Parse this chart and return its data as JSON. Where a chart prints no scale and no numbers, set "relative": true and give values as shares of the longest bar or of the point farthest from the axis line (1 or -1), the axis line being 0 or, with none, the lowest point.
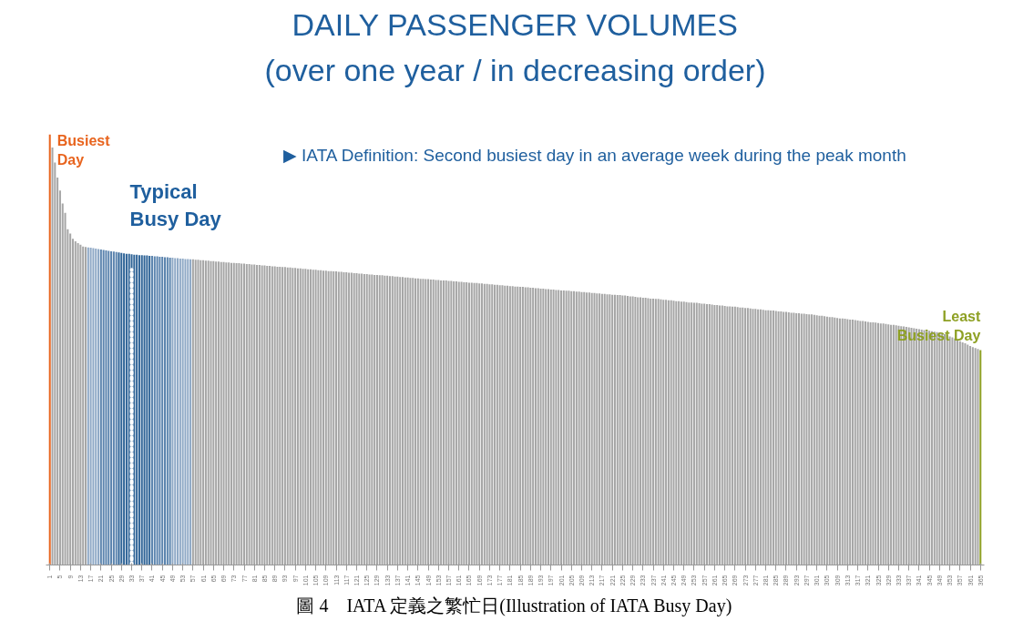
{
  "chart_data": {
    "type": "bar",
    "title": "DAILY PASSENGER VOLUMES",
    "subtitle": "(over one year / in decreasing order)",
    "relative": true,
    "categories": [
      "1",
      null,
      null,
      null,
      "5",
      null,
      null,
      null,
      "9",
      null,
      null,
      null,
      "13",
      null,
      null,
      null,
      "17",
      null,
      null,
      null,
      "21",
      null,
      null,
      null,
      "25",
      null,
      null,
      null,
      "29",
      null,
      null,
      null,
      "33",
      null,
      null,
      null,
      "37",
      null,
      null,
      null,
      "41",
      null,
      null,
      null,
      "45",
      null,
      null,
      null,
      "49",
      null,
      null,
      null,
      "53",
      null,
      null,
      null,
      "57",
      null,
      null,
      null,
      "61",
      null,
      null,
      null,
      "65",
      null,
      null,
      null,
      "69",
      null,
      null,
      null,
      "73",
      null,
      null,
      null,
      "77",
      null,
      null,
      null,
      "81",
      null,
      null,
      null,
      "85",
      null,
      null,
      null,
      "89",
      null,
      null,
      null,
      "93",
      null,
      null,
      null,
      "97",
      null,
      null,
      null,
      "101",
      null,
      null,
      null,
      "105",
      null,
      null,
      null,
      "109",
      null,
      null,
      null,
      "113",
      null,
      null,
      null,
      "117",
      null,
      null,
      null,
      "121",
      null,
      null,
      null,
      "125",
      null,
      null,
      null,
      "129",
      null,
      null,
      null,
      "133",
      null,
      null,
      null,
      "137",
      null,
      null,
      null,
      "141",
      null,
      null,
      null,
      "145",
      null,
      null,
      null,
      "149",
      null,
      null,
      null,
      "153",
      null,
      null,
      null,
      "157",
      null,
      null,
      null,
      "161",
      null,
      null,
      null,
      "165",
      null,
      null,
      null,
      "169",
      null,
      null,
      null,
      "173",
      null,
      null,
      null,
      "177",
      null,
      null,
      null,
      "181",
      null,
      null,
      null,
      "185",
      null,
      null,
      null,
      "189",
      null,
      null,
      null,
      "193",
      null,
      null,
      null,
      "197",
      null,
      null,
      null,
      "201",
      null,
      null,
      null,
      "205",
      null,
      null,
      null,
      "209",
      null,
      null,
      null,
      "213",
      null,
      null,
      null,
      "217",
      null,
      null,
      null,
      "221",
      null,
      null,
      null,
      "225",
      null,
      null,
      null,
      "229",
      null,
      null,
      null,
      "233",
      null,
      null,
      null,
      "237",
      null,
      null,
      null,
      "241",
      null,
      null,
      null,
      "245",
      null,
      null,
      null,
      "249",
      null,
      null,
      null,
      "253",
      null,
      null,
      null,
      "257",
      null,
      null,
      null,
      "261",
      null,
      null,
      null,
      "265",
      null,
      null,
      null,
      "269",
      null,
      null,
      null,
      "273",
      null,
      null,
      null,
      "277",
      null,
      null,
      null,
      "281",
      null,
      null,
      null,
      "285",
      null,
      null,
      null,
      "289",
      null,
      null,
      null,
      "293",
      null,
      null,
      null,
      "297",
      null,
      null,
      null,
      "301",
      null,
      null,
      null,
      "305",
      null,
      null,
      null,
      "309",
      null,
      null,
      null,
      "313",
      null,
      null,
      null,
      "317",
      null,
      null,
      null,
      "321",
      null,
      null,
      null,
      "325",
      null,
      null,
      null,
      "329",
      null,
      null,
      null,
      "333",
      null,
      null,
      null,
      "337",
      null,
      null,
      null,
      "341",
      null,
      null,
      null,
      "345",
      null,
      null,
      null,
      "349",
      null,
      null,
      null,
      "353",
      null,
      null,
      null,
      "357",
      null,
      null,
      null,
      "361",
      null,
      null,
      null,
      "365"
    ],
    "values": [
      1,
      0.97,
      0.935,
      0.9,
      0.87,
      0.84,
      0.818,
      0.78,
      0.77,
      0.758,
      0.752,
      0.748,
      0.744,
      0.74,
      0.739,
      0.738,
      0.737,
      0.736,
      0.735,
      0.734,
      0.733,
      0.732,
      0.731,
      0.73,
      0.729,
      0.728,
      0.727,
      0.726,
      0.725,
      0.724,
      0.723,
      0.723,
      0.722,
      0.721,
      0.721,
      0.72,
      0.72,
      0.719,
      0.719,
      0.718,
      0.718,
      0.717,
      0.717,
      0.716,
      0.716,
      0.715,
      0.715,
      0.714,
      0.714,
      0.713,
      0.713,
      0.712,
      0.712,
      0.711,
      0.711,
      0.71,
      0.71,
      0.709,
      0.709,
      0.708,
      0.708,
      0.707,
      0.707,
      0.706,
      0.706,
      0.705,
      0.705,
      0.704,
      0.704,
      0.703,
      0.703,
      0.702,
      0.702,
      0.701,
      0.701,
      0.7,
      0.7,
      0.699,
      0.699,
      0.698,
      0.698,
      0.697,
      0.697,
      0.696,
      0.696,
      0.695,
      0.695,
      0.694,
      0.694,
      0.693,
      0.693,
      0.692,
      0.692,
      0.691,
      0.691,
      0.69,
      0.69,
      0.689,
      0.689,
      0.688,
      0.688,
      0.687,
      0.687,
      0.686,
      0.686,
      0.685,
      0.685,
      0.684,
      0.684,
      0.683,
      0.683,
      0.682,
      0.682,
      0.681,
      0.681,
      0.68,
      0.68,
      0.679,
      0.679,
      0.678,
      0.678,
      0.677,
      0.677,
      0.676,
      0.676,
      0.675,
      0.675,
      0.674,
      0.674,
      0.673,
      0.673,
      0.672,
      0.672,
      0.671,
      0.671,
      0.67,
      0.67,
      0.669,
      0.669,
      0.668,
      0.668,
      0.667,
      0.667,
      0.666,
      0.666,
      0.665,
      0.665,
      0.664,
      0.664,
      0.663,
      0.663,
      0.662,
      0.662,
      0.661,
      0.661,
      0.661,
      0.66,
      0.66,
      0.659,
      0.659,
      0.658,
      0.658,
      0.657,
      0.657,
      0.656,
      0.656,
      0.655,
      0.655,
      0.654,
      0.654,
      0.653,
      0.653,
      0.652,
      0.652,
      0.651,
      0.651,
      0.65,
      0.65,
      0.649,
      0.649,
      0.648,
      0.648,
      0.647,
      0.647,
      0.646,
      0.646,
      0.645,
      0.645,
      0.644,
      0.644,
      0.643,
      0.643,
      0.642,
      0.642,
      0.641,
      0.641,
      0.64,
      0.64,
      0.639,
      0.639,
      0.638,
      0.638,
      0.637,
      0.637,
      0.636,
      0.636,
      0.635,
      0.635,
      0.634,
      0.634,
      0.633,
      0.633,
      0.632,
      0.632,
      0.631,
      0.631,
      0.63,
      0.63,
      0.629,
      0.629,
      0.628,
      0.628,
      0.627,
      0.627,
      0.626,
      0.626,
      0.625,
      0.624,
      0.624,
      0.623,
      0.622,
      0.622,
      0.621,
      0.621,
      0.62,
      0.619,
      0.619,
      0.618,
      0.618,
      0.617,
      0.616,
      0.616,
      0.615,
      0.615,
      0.614,
      0.613,
      0.613,
      0.612,
      0.612,
      0.611,
      0.61,
      0.61,
      0.609,
      0.609,
      0.608,
      0.607,
      0.607,
      0.606,
      0.606,
      0.605,
      0.604,
      0.604,
      0.603,
      0.603,
      0.602,
      0.601,
      0.601,
      0.6,
      0.6,
      0.599,
      0.598,
      0.598,
      0.597,
      0.597,
      0.596,
      0.595,
      0.595,
      0.594,
      0.594,
      0.593,
      0.592,
      0.592,
      0.591,
      0.591,
      0.59,
      0.589,
      0.589,
      0.588,
      0.588,
      0.587,
      0.586,
      0.586,
      0.585,
      0.585,
      0.584,
      0.584,
      0.583,
      0.582,
      0.582,
      0.581,
      0.58,
      0.579,
      0.579,
      0.578,
      0.577,
      0.576,
      0.576,
      0.575,
      0.574,
      0.573,
      0.573,
      0.572,
      0.571,
      0.57,
      0.57,
      0.569,
      0.568,
      0.567,
      0.567,
      0.566,
      0.565,
      0.564,
      0.564,
      0.563,
      0.562,
      0.561,
      0.561,
      0.56,
      0.559,
      0.558,
      0.558,
      0.557,
      0.556,
      0.555,
      0.554,
      0.553,
      0.552,
      0.551,
      0.55,
      0.549,
      0.548,
      0.547,
      0.546,
      0.545,
      0.544,
      0.543,
      0.542,
      0.541,
      0.54,
      0.538,
      0.536,
      0.534,
      0.531,
      0.529,
      0.526,
      0.523,
      0.52,
      0.517,
      0.515,
      0.512,
      0.509,
      0.506,
      0.504,
      0.502,
      0.499
    ],
    "colors": [
      "#e8641e",
      "#a6a6a6",
      "#a6a6a6",
      "#a6a6a6",
      "#a6a6a6",
      "#a6a6a6",
      "#a6a6a6",
      "#a6a6a6",
      "#a6a6a6",
      "#a6a6a6",
      "#a6a6a6",
      "#a6a6a6",
      "#a6a6a6",
      "#a6a6a6",
      "#a6a6a6",
      "#8fa9c6",
      "#8fa9c6",
      "#8fa9c6",
      "#8fa9c6",
      "#8fa9c6",
      "#5b84ae",
      "#5b84ae",
      "#5b84ae",
      "#5b84ae",
      "#5b84ae",
      "#5b84ae",
      "#5b84ae",
      "#2f6497",
      "#2f6497",
      "#2f6497",
      "#2f6497",
      "#2f6497",
      "#2f6497",
      "#2f6497",
      "#2f6497",
      "#2f6497",
      "#2f6497",
      "#2f6497",
      "#2f6497",
      "#2f6497",
      "#5b84ae",
      "#5b84ae",
      "#5b84ae",
      "#5b84ae",
      "#5b84ae",
      "#5b84ae",
      "#5b84ae",
      "#5b84ae",
      "#8fa9c6",
      "#8fa9c6",
      "#8fa9c6",
      "#8fa9c6",
      "#8fa9c6",
      "#8fa9c6",
      "#8fa9c6",
      "#8fa9c6",
      "#a6a6a6",
      "#a6a6a6",
      "#a6a6a6",
      "#a6a6a6",
      "#a6a6a6",
      "#a6a6a6",
      "#a6a6a6",
      "#a6a6a6",
      "#a6a6a6",
      "#a6a6a6",
      "#a6a6a6",
      "#a6a6a6",
      "#a6a6a6",
      "#a6a6a6",
      "#a6a6a6",
      "#a6a6a6",
      "#a6a6a6",
      "#a6a6a6",
      "#a6a6a6",
      "#a6a6a6",
      "#a6a6a6",
      "#a6a6a6",
      "#a6a6a6",
      "#a6a6a6",
      "#a6a6a6",
      "#a6a6a6",
      "#a6a6a6",
      "#a6a6a6",
      "#a6a6a6",
      "#a6a6a6",
      "#a6a6a6",
      "#a6a6a6",
      "#a6a6a6",
      "#a6a6a6",
      "#a6a6a6",
      "#a6a6a6",
      "#a6a6a6",
      "#a6a6a6",
      "#a6a6a6",
      "#a6a6a6",
      "#a6a6a6",
      "#a6a6a6",
      "#a6a6a6",
      "#a6a6a6",
      "#a6a6a6",
      "#a6a6a6",
      "#a6a6a6",
      "#a6a6a6",
      "#a6a6a6",
      "#a6a6a6",
      "#a6a6a6",
      "#a6a6a6",
      "#a6a6a6",
      "#a6a6a6",
      "#a6a6a6",
      "#a6a6a6",
      "#a6a6a6",
      "#a6a6a6",
      "#a6a6a6",
      "#a6a6a6",
      "#a6a6a6",
      "#a6a6a6",
      "#a6a6a6",
      "#a6a6a6",
      "#a6a6a6",
      "#a6a6a6",
      "#a6a6a6",
      "#a6a6a6",
      "#a6a6a6",
      "#a6a6a6",
      "#a6a6a6",
      "#a6a6a6",
      "#a6a6a6",
      "#a6a6a6",
      "#a6a6a6",
      "#a6a6a6",
      "#a6a6a6",
      "#a6a6a6",
      "#a6a6a6",
      "#a6a6a6",
      "#a6a6a6",
      "#a6a6a6",
      "#a6a6a6",
      "#a6a6a6",
      "#a6a6a6",
      "#a6a6a6",
      "#a6a6a6",
      "#a6a6a6",
      "#a6a6a6",
      "#a6a6a6",
      "#a6a6a6",
      "#a6a6a6",
      "#a6a6a6",
      "#a6a6a6",
      "#a6a6a6",
      "#a6a6a6",
      "#a6a6a6",
      "#a6a6a6",
      "#a6a6a6",
      "#a6a6a6",
      "#a6a6a6",
      "#a6a6a6",
      "#a6a6a6",
      "#a6a6a6",
      "#a6a6a6",
      "#a6a6a6",
      "#a6a6a6",
      "#a6a6a6",
      "#a6a6a6",
      "#a6a6a6",
      "#a6a6a6",
      "#a6a6a6",
      "#a6a6a6",
      "#a6a6a6",
      "#a6a6a6",
      "#a6a6a6",
      "#a6a6a6",
      "#a6a6a6",
      "#a6a6a6",
      "#a6a6a6",
      "#a6a6a6",
      "#a6a6a6",
      "#a6a6a6",
      "#a6a6a6",
      "#a6a6a6",
      "#a6a6a6",
      "#a6a6a6",
      "#a6a6a6",
      "#a6a6a6",
      "#a6a6a6",
      "#a6a6a6",
      "#a6a6a6",
      "#a6a6a6",
      "#a6a6a6",
      "#a6a6a6",
      "#a6a6a6",
      "#a6a6a6",
      "#a6a6a6",
      "#a6a6a6",
      "#a6a6a6",
      "#a6a6a6",
      "#a6a6a6",
      "#a6a6a6",
      "#a6a6a6",
      "#a6a6a6",
      "#a6a6a6",
      "#a6a6a6",
      "#a6a6a6",
      "#a6a6a6",
      "#a6a6a6",
      "#a6a6a6",
      "#a6a6a6",
      "#a6a6a6",
      "#a6a6a6",
      "#a6a6a6",
      "#a6a6a6",
      "#a6a6a6",
      "#a6a6a6",
      "#a6a6a6",
      "#a6a6a6",
      "#a6a6a6",
      "#a6a6a6",
      "#a6a6a6",
      "#a6a6a6",
      "#a6a6a6",
      "#a6a6a6",
      "#a6a6a6",
      "#a6a6a6",
      "#a6a6a6",
      "#a6a6a6",
      "#a6a6a6",
      "#a6a6a6",
      "#a6a6a6",
      "#a6a6a6",
      "#a6a6a6",
      "#a6a6a6",
      "#a6a6a6",
      "#a6a6a6",
      "#a6a6a6",
      "#a6a6a6",
      "#a6a6a6",
      "#a6a6a6",
      "#a6a6a6",
      "#a6a6a6",
      "#a6a6a6",
      "#a6a6a6",
      "#a6a6a6",
      "#a6a6a6",
      "#a6a6a6",
      "#a6a6a6",
      "#a6a6a6",
      "#a6a6a6",
      "#a6a6a6",
      "#a6a6a6",
      "#a6a6a6",
      "#a6a6a6",
      "#a6a6a6",
      "#a6a6a6",
      "#a6a6a6",
      "#a6a6a6",
      "#a6a6a6",
      "#a6a6a6",
      "#a6a6a6",
      "#a6a6a6",
      "#a6a6a6",
      "#a6a6a6",
      "#a6a6a6",
      "#a6a6a6",
      "#a6a6a6",
      "#a6a6a6",
      "#a6a6a6",
      "#a6a6a6",
      "#a6a6a6",
      "#a6a6a6",
      "#a6a6a6",
      "#a6a6a6",
      "#a6a6a6",
      "#a6a6a6",
      "#a6a6a6",
      "#a6a6a6",
      "#a6a6a6",
      "#a6a6a6",
      "#a6a6a6",
      "#a6a6a6",
      "#a6a6a6",
      "#a6a6a6",
      "#a6a6a6",
      "#a6a6a6",
      "#a6a6a6",
      "#a6a6a6",
      "#a6a6a6",
      "#a6a6a6",
      "#a6a6a6",
      "#a6a6a6",
      "#a6a6a6",
      "#a6a6a6",
      "#a6a6a6",
      "#a6a6a6",
      "#a6a6a6",
      "#a6a6a6",
      "#a6a6a6",
      "#a6a6a6",
      "#a6a6a6",
      "#a6a6a6",
      "#a6a6a6",
      "#a6a6a6",
      "#a6a6a6",
      "#a6a6a6",
      "#a6a6a6",
      "#a6a6a6",
      "#a6a6a6",
      "#a6a6a6",
      "#a6a6a6",
      "#a6a6a6",
      "#a6a6a6",
      "#a6a6a6",
      "#a6a6a6",
      "#a6a6a6",
      "#a6a6a6",
      "#a6a6a6",
      "#a6a6a6",
      "#a6a6a6",
      "#a6a6a6",
      "#a6a6a6",
      "#a6a6a6",
      "#a6a6a6",
      "#a6a6a6",
      "#a6a6a6",
      "#a6a6a6",
      "#a6a6a6",
      "#a6a6a6",
      "#a6a6a6",
      "#a6a6a6",
      "#a6a6a6",
      "#a6a6a6",
      "#a6a6a6",
      "#a6a6a6",
      "#a6a6a6",
      "#a6a6a6",
      "#a6a6a6",
      "#a6a6a6",
      "#a6a6a6",
      "#a6a6a6",
      "#a6a6a6",
      "#a6a6a6",
      "#a6a6a6",
      "#a6a6a6",
      "#a6a6a6",
      "#a6a6a6",
      "#a6a6a6",
      "#a6a6a6",
      "#a6a6a6",
      "#a6a6a6",
      "#a6a6a6",
      "#a6a6a6",
      "#a6a6a6",
      "#a6a6a6",
      "#a6a6a6",
      "#a6a6a6",
      "#a6a6a6",
      "#a6a6a6",
      "#a6a6a6",
      "#a6a6a6",
      "#a6a6a6",
      "#a6a6a6",
      "#a6a6a6",
      "#a6a6a6",
      "#a6a6a6",
      "#8ea024"
    ],
    "ref_lines": [
      {
        "axis": "x",
        "value": "33",
        "color": "#ffffff",
        "line_style": "dotted"
      }
    ],
    "annotations": [
      {
        "text": "Busiest Day",
        "x": "1",
        "y": 1
      },
      {
        "text": "Typical Busy Day",
        "x": "33",
        "y": 0.722
      },
      {
        "text": "Least Busiest Day",
        "x": "365",
        "y": 0.499
      },
      "▶ IATA Definition: Second busiest day in an average week during the peak month",
      "圖 4　IATA 定義之繁忙日(Illustration of IATA Busy Day)"
    ]
  }
}
